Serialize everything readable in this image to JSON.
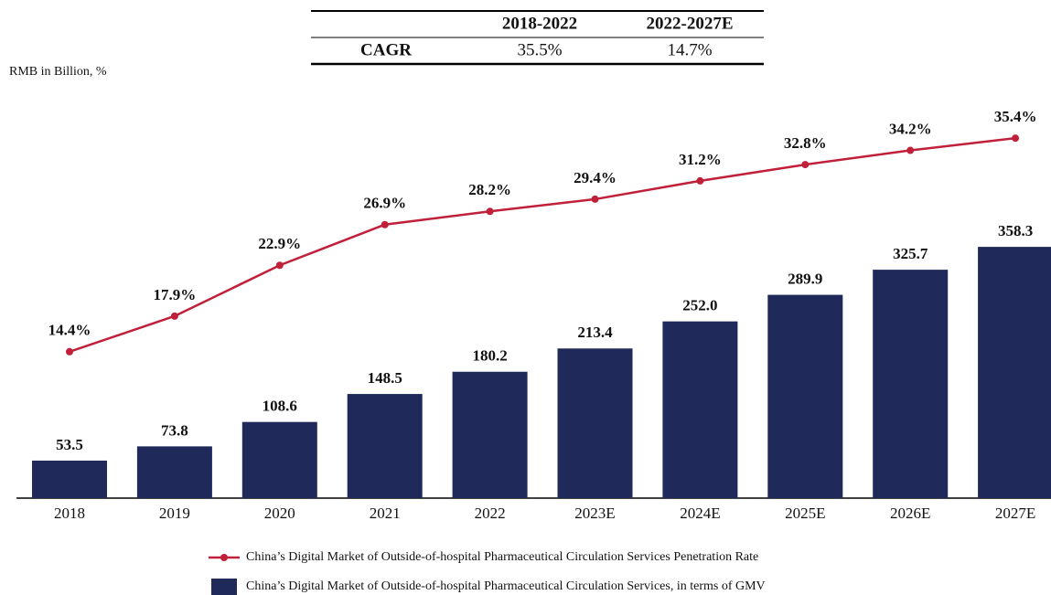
{
  "chart_data": {
    "type": "bar_line",
    "subtitle": "RMB in Billion, %",
    "cagr_table": {
      "columns": [
        "2018-2022",
        "2022-2027E"
      ],
      "rows": [
        {
          "label": "CAGR",
          "values": [
            "35.5%",
            "14.7%"
          ]
        }
      ]
    },
    "categories": [
      "2018",
      "2019",
      "2020",
      "2021",
      "2022",
      "2023E",
      "2024E",
      "2025E",
      "2026E",
      "2027E"
    ],
    "series": [
      {
        "name": "China’s Digital Market of Outside-of-hospital Pharmaceutical Circulation Services Penetration Rate",
        "type": "line",
        "axis": "y2",
        "color": "#c0203a",
        "values": [
          14.4,
          17.9,
          22.9,
          26.9,
          28.2,
          29.4,
          31.2,
          32.8,
          34.2,
          35.4
        ],
        "value_labels": [
          "14.4%",
          "17.9%",
          "22.9%",
          "26.9%",
          "28.2%",
          "29.4%",
          "31.2%",
          "32.8%",
          "34.2%",
          "35.4%"
        ]
      },
      {
        "name": "China’s Digital Market of Outside-of-hospital Pharmaceutical Circulation Services, in terms of GMV",
        "type": "bar",
        "color": "#1f2a5a",
        "values": [
          53.5,
          73.8,
          108.6,
          148.5,
          180.2,
          213.4,
          252.0,
          289.9,
          325.7,
          358.3
        ],
        "value_labels": [
          "53.5",
          "73.8",
          "108.6",
          "148.5",
          "180.2",
          "213.4",
          "252.0",
          "289.9",
          "325.7",
          "358.3"
        ]
      }
    ],
    "ylim": [
      0,
      580
    ],
    "y2lim": [
      0,
      40
    ]
  }
}
